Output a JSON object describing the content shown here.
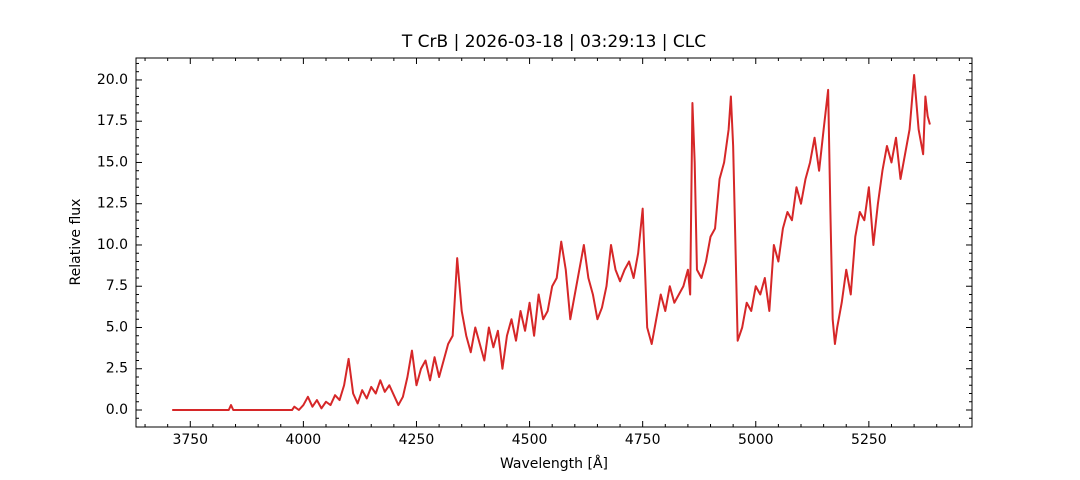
{
  "chart_data": {
    "type": "line",
    "title": "T CrB | 2026-03-18 | 03:29:13 | CLC",
    "xlabel": "Wavelength [Å]",
    "ylabel": "Relative flux",
    "xlim": [
      3630,
      5478
    ],
    "ylim": [
      -1.03,
      21.33
    ],
    "xticks": [
      3750,
      4000,
      4250,
      4500,
      4750,
      5000,
      5250
    ],
    "yticks": [
      {
        "value": 0,
        "label": "0.0"
      },
      2.5,
      {
        "value": 5,
        "label": "5.0"
      },
      7.5,
      {
        "value": 10,
        "label": "10.0"
      },
      12.5,
      {
        "value": 15,
        "label": "15.0"
      },
      17.5,
      {
        "value": 20,
        "label": "20.0"
      }
    ],
    "xminorticks": [
      3650,
      3700,
      3800,
      3850,
      3900,
      3950,
      4050,
      4100,
      4150,
      4200,
      4300,
      4350,
      4400,
      4450,
      4550,
      4600,
      4650,
      4700,
      4800,
      4850,
      4900,
      4950,
      5050,
      5100,
      5150,
      5200,
      5300,
      5350,
      5400,
      5450
    ],
    "yminorticks": [
      -0.5,
      0.5,
      1,
      1.5,
      2,
      3,
      3.5,
      4,
      4.5,
      5.5,
      6,
      6.5,
      7,
      8,
      8.5,
      9,
      9.5,
      10.5,
      11,
      11.5,
      12,
      13,
      13.5,
      14,
      14.5,
      15.5,
      16,
      16.5,
      17,
      18,
      18.5,
      19,
      19.5,
      20.5,
      21
    ],
    "grid": false,
    "series": [
      {
        "color": "#d62728",
        "x": [
          3710,
          3835,
          3840,
          3845,
          3975,
          3980,
          3990,
          4000,
          4010,
          4020,
          4030,
          4040,
          4050,
          4060,
          4070,
          4080,
          4090,
          4100,
          4110,
          4120,
          4130,
          4140,
          4150,
          4160,
          4170,
          4180,
          4190,
          4200,
          4210,
          4220,
          4230,
          4240,
          4250,
          4260,
          4270,
          4280,
          4290,
          4300,
          4310,
          4320,
          4330,
          4340,
          4350,
          4360,
          4370,
          4380,
          4390,
          4400,
          4410,
          4420,
          4430,
          4440,
          4450,
          4460,
          4470,
          4480,
          4490,
          4500,
          4510,
          4520,
          4530,
          4540,
          4550,
          4560,
          4570,
          4580,
          4590,
          4600,
          4610,
          4620,
          4630,
          4640,
          4650,
          4660,
          4670,
          4680,
          4690,
          4700,
          4710,
          4720,
          4730,
          4740,
          4750,
          4760,
          4770,
          4780,
          4790,
          4800,
          4810,
          4820,
          4830,
          4840,
          4850,
          4855,
          4860,
          4865,
          4870,
          4880,
          4890,
          4900,
          4910,
          4920,
          4930,
          4940,
          4945,
          4950,
          4960,
          4970,
          4980,
          4990,
          5000,
          5010,
          5020,
          5030,
          5040,
          5050,
          5060,
          5070,
          5080,
          5090,
          5100,
          5110,
          5120,
          5130,
          5140,
          5150,
          5160,
          5165,
          5170,
          5175,
          5180,
          5190,
          5200,
          5210,
          5220,
          5230,
          5240,
          5250,
          5260,
          5270,
          5280,
          5290,
          5300,
          5310,
          5320,
          5330,
          5340,
          5350,
          5360,
          5370,
          5375,
          5380,
          5385
        ],
        "values": [
          0,
          0,
          0.3,
          0,
          0,
          0.2,
          0,
          0.3,
          0.8,
          0.2,
          0.6,
          0.1,
          0.5,
          0.3,
          0.9,
          0.6,
          1.5,
          3.1,
          1.0,
          0.4,
          1.2,
          0.7,
          1.4,
          1.0,
          1.8,
          1.1,
          1.5,
          0.9,
          0.3,
          0.8,
          2.0,
          3.6,
          1.5,
          2.5,
          3.0,
          1.8,
          3.2,
          2.0,
          3.0,
          4.0,
          4.5,
          9.2,
          6.0,
          4.5,
          3.5,
          5.0,
          4.0,
          3.0,
          5.0,
          3.8,
          4.8,
          2.5,
          4.5,
          5.5,
          4.2,
          6.0,
          4.8,
          6.5,
          4.5,
          7.0,
          5.5,
          6.0,
          7.5,
          8.0,
          10.2,
          8.5,
          5.5,
          7.0,
          8.5,
          10.0,
          8.0,
          7.0,
          5.5,
          6.2,
          7.5,
          10.0,
          8.5,
          7.8,
          8.5,
          9.0,
          8.0,
          9.5,
          12.2,
          5.0,
          4.0,
          5.5,
          7.0,
          6.0,
          7.5,
          6.5,
          7.0,
          7.5,
          8.5,
          7.0,
          18.6,
          15.0,
          8.5,
          8.0,
          9.0,
          10.5,
          11.0,
          14.0,
          15.0,
          17.0,
          19.0,
          16.0,
          4.2,
          5.0,
          6.5,
          6.0,
          7.5,
          7.0,
          8.0,
          6.0,
          10.0,
          9.0,
          11.0,
          12.0,
          11.5,
          13.5,
          12.5,
          14.0,
          15.0,
          16.5,
          14.5,
          17.0,
          19.4,
          12.0,
          5.5,
          4.0,
          5.0,
          6.5,
          8.5,
          7.0,
          10.5,
          12.0,
          11.5,
          13.5,
          10.0,
          12.5,
          14.5,
          16.0,
          15.0,
          16.5,
          14.0,
          15.5,
          17.0,
          20.3,
          17.0,
          15.5,
          19.0,
          17.8,
          17.3
        ]
      }
    ]
  }
}
